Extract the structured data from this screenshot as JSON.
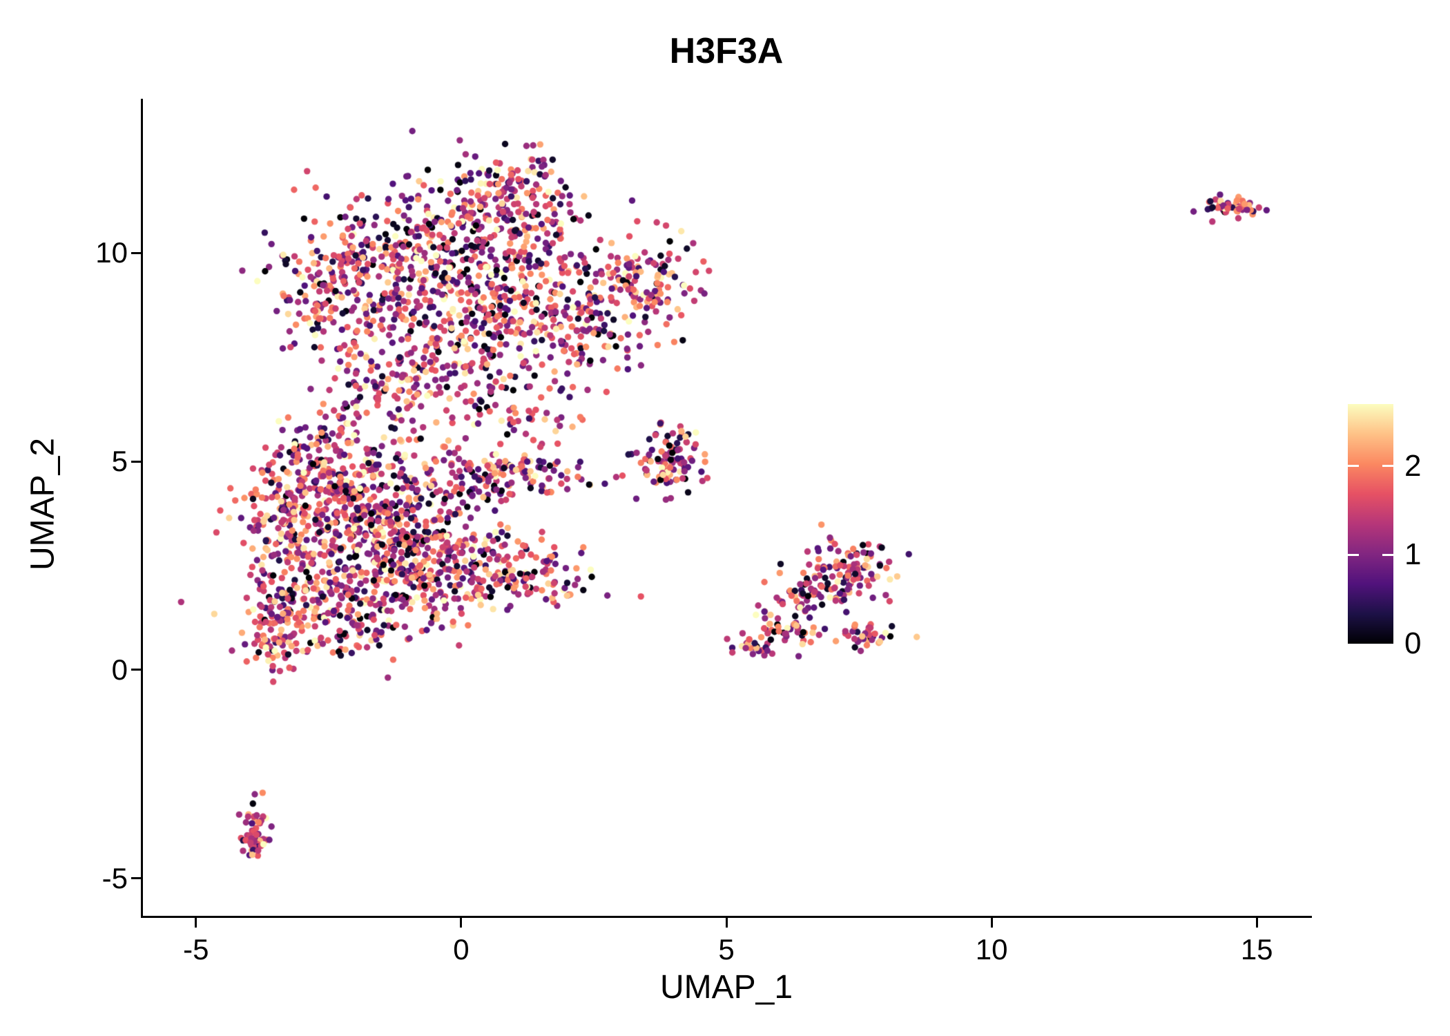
{
  "figure": {
    "background_color": "#ffffff",
    "text_color": "#000000",
    "axis_color": "#000000"
  },
  "chart_data": {
    "type": "scatter",
    "title": "H3F3A",
    "xlabel": "UMAP_1",
    "ylabel": "UMAP_2",
    "x_ticks": [
      -5,
      0,
      5,
      10,
      15
    ],
    "y_ticks": [
      -5,
      0,
      5,
      10
    ],
    "x_range": [
      -6,
      16
    ],
    "y_range": [
      -5.9,
      13.7
    ],
    "grid": false,
    "legend_position": "right",
    "colorbar": {
      "ticks": [
        0,
        1,
        2
      ],
      "vmin": 0,
      "vmax": 2.7,
      "colormap_name": "magma",
      "stops": [
        "#000004",
        "#1d1147",
        "#51127c",
        "#822681",
        "#b63679",
        "#e65164",
        "#fb8861",
        "#fec287",
        "#fcfdbf"
      ]
    },
    "points": {
      "radius_px": 4.7,
      "seed": 20240731,
      "value_mean": 1.45,
      "value_sd": 0.7,
      "near_zero_fraction": 0.07
    },
    "clusters": [
      {
        "x": -1.6,
        "y": 9.6,
        "sx": 0.85,
        "sy": 0.85,
        "n": 190
      },
      {
        "x": 0.2,
        "y": 10.4,
        "sx": 1.0,
        "sy": 0.75,
        "n": 240
      },
      {
        "x": 1.4,
        "y": 9.2,
        "sx": 0.95,
        "sy": 0.9,
        "n": 230
      },
      {
        "x": -0.2,
        "y": 8.4,
        "sx": 1.1,
        "sy": 0.7,
        "n": 190
      },
      {
        "x": 0.9,
        "y": 11.6,
        "sx": 0.6,
        "sy": 0.45,
        "n": 90
      },
      {
        "x": 3.5,
        "y": 9.3,
        "sx": 0.45,
        "sy": 0.45,
        "n": 110
      },
      {
        "x": 2.5,
        "y": 8.0,
        "sx": 0.6,
        "sy": 0.6,
        "n": 80
      },
      {
        "x": -2.6,
        "y": 8.9,
        "sx": 0.5,
        "sy": 0.7,
        "n": 90
      },
      {
        "x": -0.3,
        "y": 6.8,
        "sx": 0.9,
        "sy": 0.55,
        "n": 110
      },
      {
        "x": 1.0,
        "y": 6.0,
        "sx": 0.6,
        "sy": 0.5,
        "n": 50
      },
      {
        "x": -1.8,
        "y": 6.9,
        "sx": 0.5,
        "sy": 0.5,
        "n": 50
      },
      {
        "x": -2.7,
        "y": 5.3,
        "sx": 0.55,
        "sy": 0.6,
        "n": 70
      },
      {
        "x": -1.6,
        "y": 5.0,
        "sx": 0.8,
        "sy": 0.5,
        "n": 90
      },
      {
        "x": -3.2,
        "y": 3.6,
        "sx": 0.55,
        "sy": 0.8,
        "n": 170
      },
      {
        "x": -2.0,
        "y": 3.9,
        "sx": 0.8,
        "sy": 0.6,
        "n": 200
      },
      {
        "x": -0.9,
        "y": 3.4,
        "sx": 0.8,
        "sy": 0.6,
        "n": 170
      },
      {
        "x": -2.7,
        "y": 1.6,
        "sx": 0.7,
        "sy": 0.8,
        "n": 220
      },
      {
        "x": -1.3,
        "y": 2.1,
        "sx": 0.8,
        "sy": 0.65,
        "n": 200
      },
      {
        "x": 0.2,
        "y": 2.4,
        "sx": 0.7,
        "sy": 0.6,
        "n": 130
      },
      {
        "x": 1.4,
        "y": 2.3,
        "sx": 0.55,
        "sy": 0.5,
        "n": 70
      },
      {
        "x": -3.6,
        "y": 0.9,
        "sx": 0.3,
        "sy": 0.5,
        "n": 60
      },
      {
        "x": 1.2,
        "y": 4.7,
        "sx": 0.65,
        "sy": 0.25,
        "n": 80
      },
      {
        "x": 0.3,
        "y": 4.4,
        "sx": 0.4,
        "sy": 0.3,
        "n": 40
      },
      {
        "x": 3.9,
        "y": 5.0,
        "sx": 0.32,
        "sy": 0.42,
        "n": 100
      },
      {
        "x": 7.3,
        "y": 2.4,
        "sx": 0.42,
        "sy": 0.38,
        "n": 100
      },
      {
        "x": 6.7,
        "y": 1.7,
        "sx": 0.4,
        "sy": 0.35,
        "n": 60
      },
      {
        "x": 6.1,
        "y": 1.0,
        "sx": 0.35,
        "sy": 0.3,
        "n": 45
      },
      {
        "x": 5.6,
        "y": 0.6,
        "sx": 0.2,
        "sy": 0.15,
        "n": 25
      },
      {
        "x": 7.7,
        "y": 0.85,
        "sx": 0.3,
        "sy": 0.15,
        "n": 35
      },
      {
        "x": -3.85,
        "y": -3.6,
        "sx": 0.13,
        "sy": 0.3,
        "n": 30
      },
      {
        "x": -3.9,
        "y": -4.25,
        "sx": 0.12,
        "sy": 0.22,
        "n": 25
      },
      {
        "x": 14.55,
        "y": 11.1,
        "sx": 0.3,
        "sy": 0.12,
        "n": 55
      }
    ]
  }
}
